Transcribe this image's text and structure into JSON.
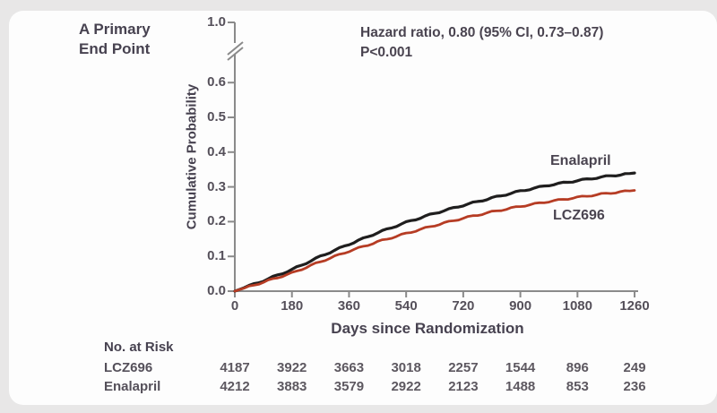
{
  "panel": {
    "title_line1": "A Primary",
    "title_line2": "End Point"
  },
  "chart_data": {
    "type": "line",
    "title": "A Primary End Point",
    "xlabel": "Days since Randomization",
    "ylabel": "Cumulative Probability",
    "annotation": {
      "line1": "Hazard ratio, 0.80 (95% CI, 0.73–0.87)",
      "line2": "P<0.001"
    },
    "xlim": [
      0,
      1260
    ],
    "ylim_shown": [
      0.0,
      0.6
    ],
    "axis_break_between": [
      0.6,
      1.0
    ],
    "grid": false,
    "legend_position": "on-curve",
    "xticks": [
      0,
      180,
      360,
      540,
      720,
      900,
      1080,
      1260
    ],
    "yticks": [
      {
        "label": "1.0",
        "value": 1.0
      },
      {
        "label": "0.6",
        "value": 0.6
      },
      {
        "label": "0.5",
        "value": 0.5
      },
      {
        "label": "0.4",
        "value": 0.4
      },
      {
        "label": "0.3",
        "value": 0.3
      },
      {
        "label": "0.2",
        "value": 0.2
      },
      {
        "label": "0.1",
        "value": 0.1
      },
      {
        "label": "0.0",
        "value": 0.0
      }
    ],
    "x": [
      0,
      90,
      180,
      270,
      360,
      450,
      540,
      630,
      720,
      810,
      900,
      990,
      1080,
      1170,
      1260
    ],
    "series": [
      {
        "name": "Enalapril",
        "color": "#1f1e1e",
        "values": [
          0.0,
          0.03,
          0.062,
          0.1,
          0.135,
          0.168,
          0.198,
          0.224,
          0.247,
          0.268,
          0.288,
          0.305,
          0.318,
          0.33,
          0.34
        ]
      },
      {
        "name": "LCZ696",
        "color": "#b63c24",
        "values": [
          0.0,
          0.026,
          0.052,
          0.085,
          0.115,
          0.142,
          0.166,
          0.189,
          0.21,
          0.228,
          0.244,
          0.258,
          0.27,
          0.281,
          0.29
        ]
      }
    ]
  },
  "risk_table": {
    "title": "No. at Risk",
    "rows": [
      {
        "label": "LCZ696",
        "values": [
          4187,
          3922,
          3663,
          3018,
          2257,
          1544,
          896,
          249
        ]
      },
      {
        "label": "Enalapril",
        "values": [
          4212,
          3883,
          3579,
          2922,
          2123,
          1488,
          853,
          236
        ]
      }
    ]
  },
  "colors": {
    "axis": "#8a8a8a",
    "text_dark": "#474250",
    "text_gray": "#55505a",
    "card_bg": "#fdfdfd",
    "page_bg": "#e8e7e7"
  }
}
